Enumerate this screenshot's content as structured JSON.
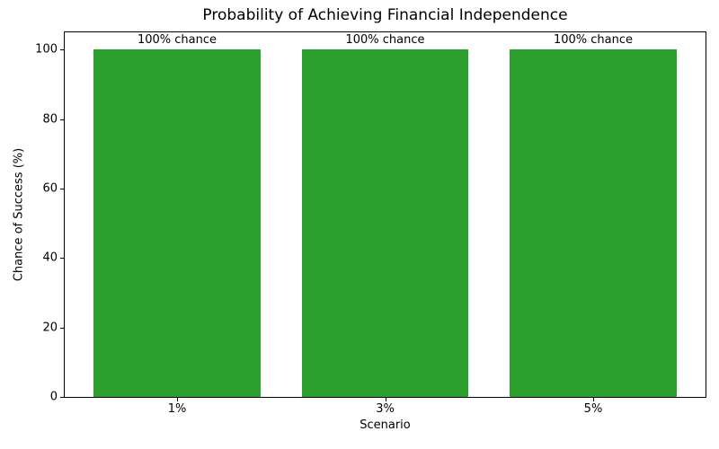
{
  "chart_data": {
    "type": "bar",
    "title": "Probability of Achieving Financial Independence",
    "xlabel": "Scenario",
    "ylabel": "Chance of Success (%)",
    "categories": [
      "1%",
      "3%",
      "5%"
    ],
    "values": [
      100,
      100,
      100
    ],
    "bar_labels": [
      "100% chance",
      "100% chance",
      "100% chance"
    ],
    "bar_color": "#2ca02c",
    "axis_color": "#000000",
    "text_color": "#000000",
    "background_color": "#ffffff",
    "ylim": [
      0,
      105
    ],
    "yticks": [
      0,
      20,
      40,
      60,
      80,
      100
    ],
    "grid": false,
    "legend": "none"
  }
}
